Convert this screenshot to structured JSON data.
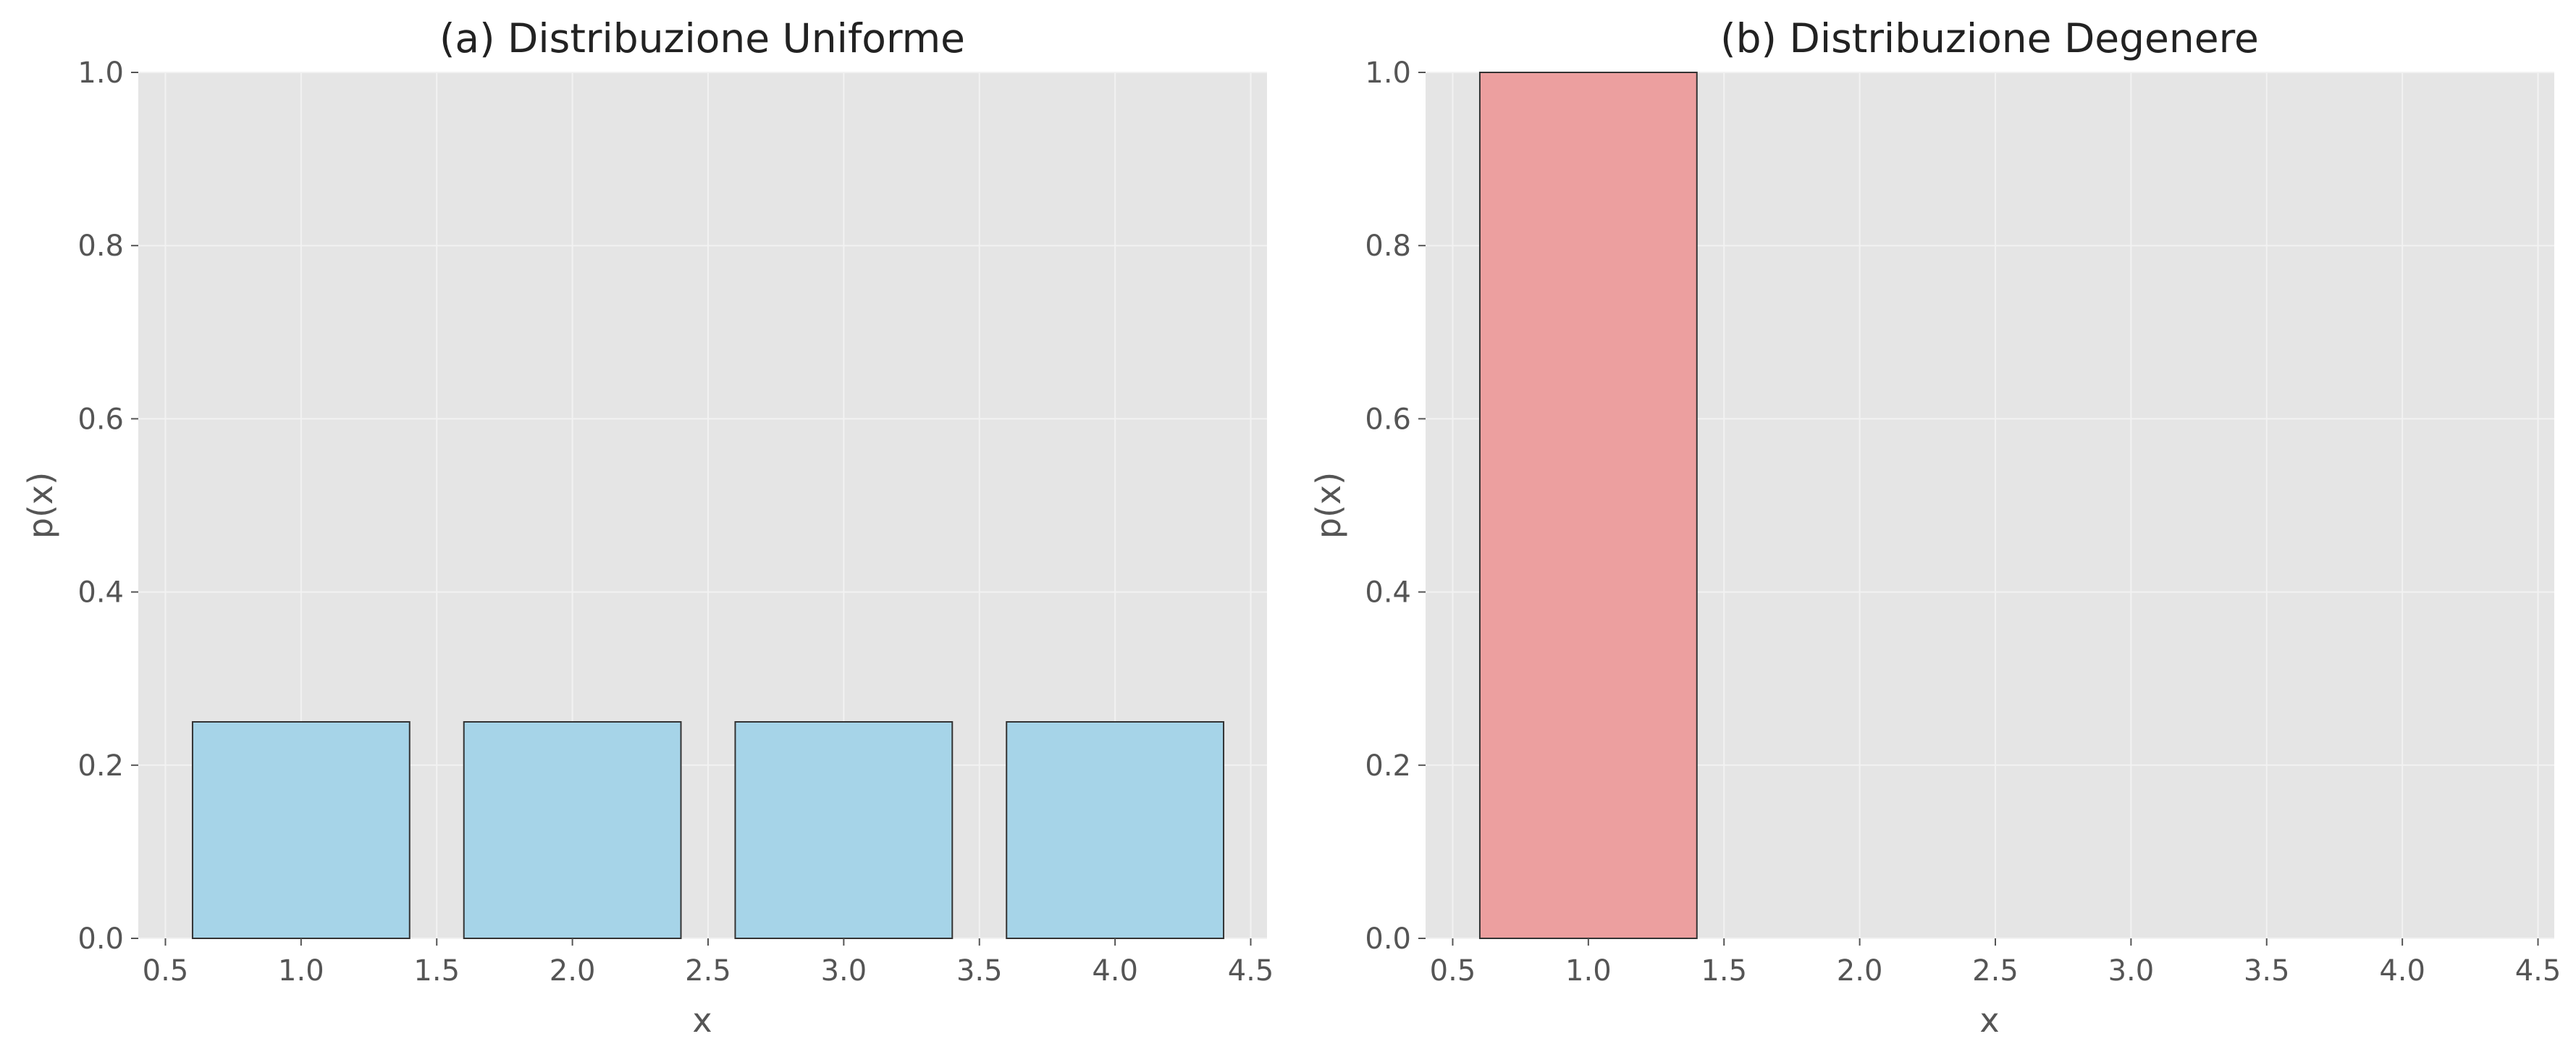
{
  "chart_data": [
    {
      "type": "bar",
      "title": "(a) Distribuzione Uniforme",
      "xlabel": "x",
      "ylabel": "p(x)",
      "x": [
        1,
        2,
        3,
        4
      ],
      "values": [
        0.25,
        0.25,
        0.25,
        0.25
      ],
      "bar_width": 0.8,
      "xlim": [
        0.4,
        4.56
      ],
      "ylim": [
        0,
        1.0
      ],
      "xticks": [
        "0.5",
        "1.0",
        "1.5",
        "2.0",
        "2.5",
        "3.0",
        "3.5",
        "4.0",
        "4.5"
      ],
      "yticks": [
        "0.0",
        "0.2",
        "0.4",
        "0.6",
        "0.8",
        "1.0"
      ],
      "grid": true,
      "bar_color": "#a6d4e8",
      "edge_color": "#333333"
    },
    {
      "type": "bar",
      "title": "(b) Distribuzione Degenere",
      "xlabel": "x",
      "ylabel": "p(x)",
      "x": [
        1
      ],
      "values": [
        1.0
      ],
      "bar_width": 0.8,
      "xlim": [
        0.4,
        4.56
      ],
      "ylim": [
        0,
        1.0
      ],
      "xticks": [
        "0.5",
        "1.0",
        "1.5",
        "2.0",
        "2.5",
        "3.0",
        "3.5",
        "4.0",
        "4.5"
      ],
      "yticks": [
        "0.0",
        "0.2",
        "0.4",
        "0.6",
        "0.8",
        "1.0"
      ],
      "grid": true,
      "bar_color": "#ec9f9f",
      "edge_color": "#333333"
    }
  ]
}
